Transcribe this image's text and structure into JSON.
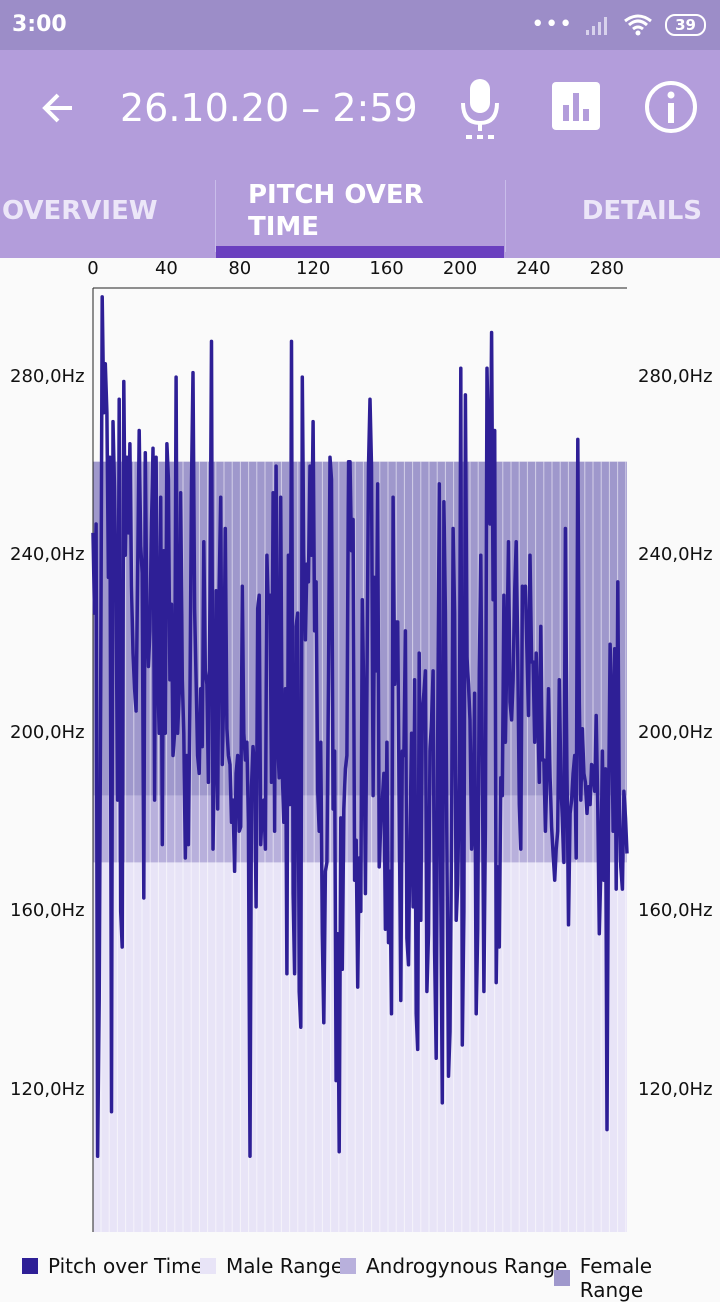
{
  "status_bar": {
    "time": "3:00",
    "battery": "39"
  },
  "app_bar": {
    "title": "26.10.20 – 2:59"
  },
  "tabs": [
    {
      "label": "OVERVIEW"
    },
    {
      "label_line1": "PITCH OVER",
      "label_line2": "TIME"
    },
    {
      "label": "DETAILS"
    }
  ],
  "colors": {
    "status_bar": "#9c8dc8",
    "app_bar": "#b39ddb",
    "tab_indicator": "#6a3fbf",
    "pitch_line": "#2e1f96",
    "male_range": "#e8e4f7",
    "androgynous_range": "#b8b0dc",
    "female_range": "#9f98cc"
  },
  "icons": {
    "back": "arrow-left-icon",
    "mic": "microphone-icon",
    "chart": "bar-chart-icon",
    "info": "info-icon"
  },
  "chart_data": {
    "type": "line",
    "x_ticks": [
      "0",
      "40",
      "80",
      "120",
      "160",
      "200",
      "240",
      "280"
    ],
    "y_ticks": [
      "280,0Hz",
      "240,0Hz",
      "200,0Hz",
      "160,0Hz",
      "120,0Hz"
    ],
    "xlim": [
      0,
      291
    ],
    "ylim": [
      88,
      300
    ],
    "bands": [
      {
        "name": "Male Range",
        "from": 88,
        "to": 171
      },
      {
        "name": "Androgynous Range",
        "from": 171,
        "to": 186
      },
      {
        "name": "Female Range",
        "from": 186,
        "to": 261
      }
    ],
    "series": [
      {
        "name": "Pitch over Time",
        "values": [
          245,
          227,
          247,
          105,
          140,
          210,
          298,
          272,
          283,
          272,
          235,
          262,
          115,
          270,
          255,
          230,
          185,
          275,
          160,
          152,
          279,
          240,
          262,
          245,
          265,
          233,
          218,
          210,
          205,
          235,
          268,
          242,
          236,
          163,
          263,
          225,
          215,
          223,
          247,
          264,
          185,
          262,
          215,
          200,
          253,
          175,
          241,
          200,
          265,
          257,
          212,
          229,
          195,
          200,
          280,
          200,
          209,
          254,
          212,
          200,
          172,
          195,
          175,
          209,
          256,
          281,
          228,
          212,
          195,
          191,
          210,
          197,
          243,
          214,
          211,
          189,
          230,
          288,
          174,
          197,
          232,
          183,
          233,
          253,
          193,
          210,
          246,
          201,
          195,
          193,
          180,
          185,
          169,
          191,
          195,
          178,
          179,
          233,
          200,
          194,
          198,
          180,
          105,
          188,
          197,
          192,
          161,
          228,
          231,
          175,
          183,
          185,
          174,
          240,
          227,
          231,
          189,
          254,
          178,
          260,
          198,
          190,
          253,
          191,
          180,
          210,
          146,
          240,
          184,
          288,
          164,
          146,
          224,
          227,
          142,
          134,
          280,
          240,
          221,
          238,
          234,
          260,
          240,
          270,
          223,
          234,
          187,
          178,
          198,
          155,
          135,
          169,
          171,
          212,
          262,
          257,
          183,
          196,
          122,
          155,
          106,
          181,
          147,
          183,
          192,
          195,
          261,
          261,
          241,
          248,
          167,
          176,
          143,
          172,
          160,
          230,
          208,
          164,
          209,
          260,
          275,
          260,
          186,
          235,
          214,
          256,
          170,
          180,
          185,
          191,
          156,
          198,
          153,
          169,
          137,
          253,
          211,
          225,
          225,
          184,
          140,
          196,
          195,
          223,
          154,
          148,
          177,
          200,
          161,
          212,
          137,
          129,
          218,
          158,
          205,
          209,
          214,
          142,
          155,
          196,
          203,
          214,
          151,
          127,
          199,
          256,
          164,
          117,
          252,
          227,
          174,
          123,
          133,
          178,
          246,
          227,
          158,
          166,
          191,
          282,
          130,
          160,
          276,
          217,
          211,
          203,
          174,
          179,
          209,
          137,
          156,
          214,
          240,
          195,
          142,
          179,
          282,
          262,
          247,
          290,
          230,
          268,
          144,
          170,
          152,
          190,
          186,
          231,
          198,
          220,
          243,
          207,
          203,
          212,
          232,
          243,
          219,
          184,
          174,
          233,
          230,
          233,
          218,
          204,
          240,
          216,
          216,
          198,
          218,
          205,
          189,
          224,
          194,
          194,
          178,
          192,
          210,
          190,
          179,
          173,
          167,
          174,
          178,
          212,
          190,
          180,
          171,
          246,
          192,
          157,
          182,
          185,
          191,
          195,
          172,
          266,
          207,
          185,
          201,
          191,
          189,
          182,
          188,
          184,
          193,
          192,
          187,
          204,
          183,
          155,
          169,
          196,
          167,
          192,
          111,
          181,
          220,
          208,
          178,
          219,
          165,
          234,
          183,
          170,
          165,
          187,
          181,
          173
        ]
      }
    ]
  },
  "legend": [
    {
      "label": "Pitch over Time",
      "color": "#2e1f96"
    },
    {
      "label": "Male Range",
      "color": "#e8e4f7"
    },
    {
      "label": "Androgynous Range",
      "color": "#b8b0dc"
    },
    {
      "label": "Female Range",
      "color": "#9f98cc"
    }
  ]
}
